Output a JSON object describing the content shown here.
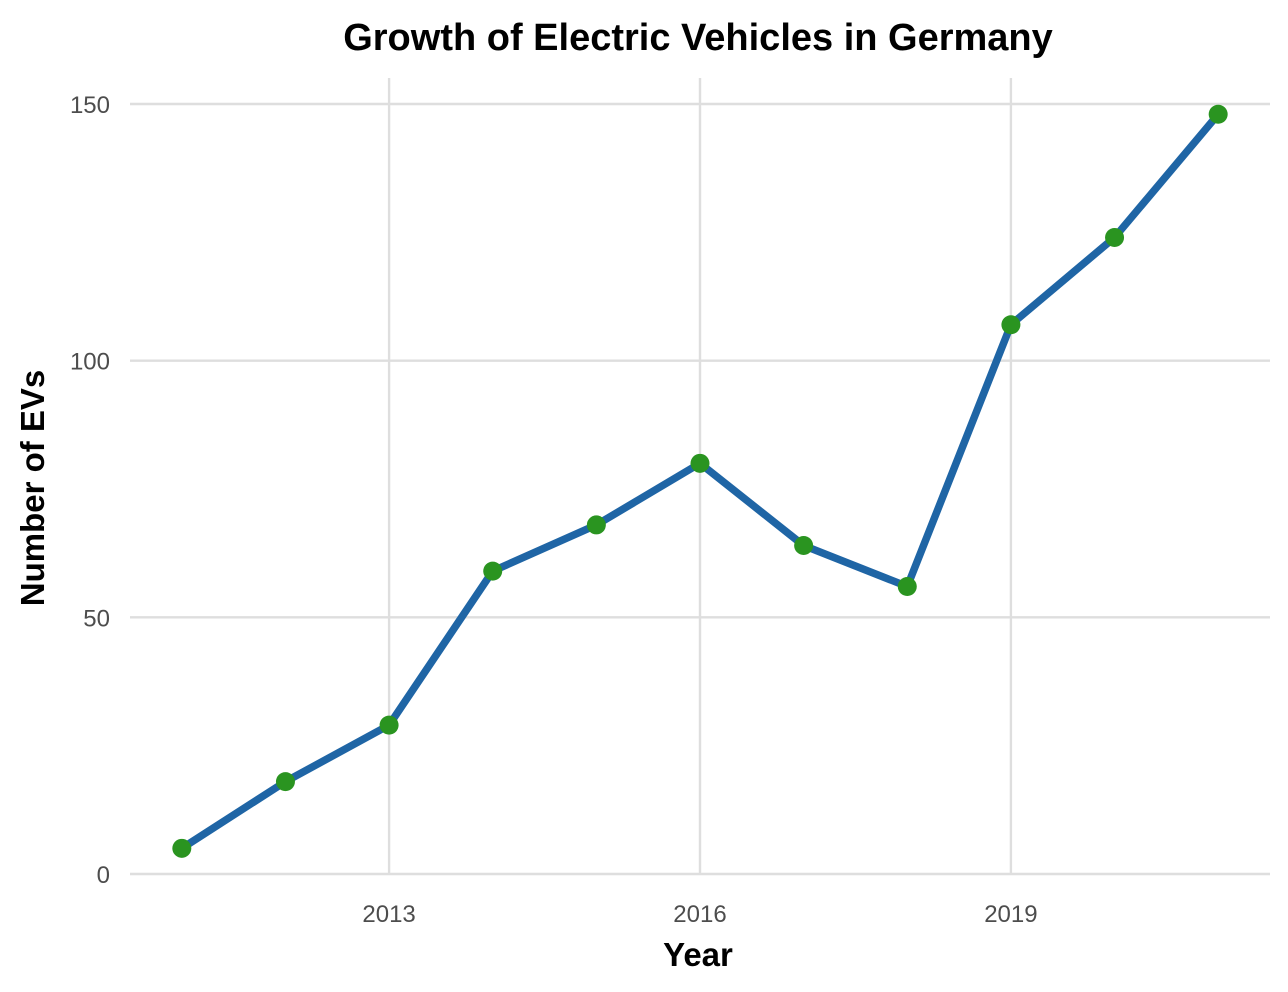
{
  "chart_data": {
    "type": "line",
    "title": "Growth of Electric Vehicles in Germany",
    "xlabel": "Year",
    "ylabel": "Number of EVs",
    "x": [
      2011,
      2012,
      2013,
      2014,
      2015,
      2016,
      2017,
      2018,
      2019,
      2020,
      2021
    ],
    "series": [
      {
        "values": [
          5,
          18,
          29,
          59,
          68,
          80,
          64,
          56,
          107,
          124,
          148
        ]
      }
    ],
    "xticks": [
      2013,
      2016,
      2019
    ],
    "xtick_labels": [
      "2013",
      "2016",
      "2019"
    ],
    "yticks": [
      0,
      50,
      100,
      150
    ],
    "ytick_labels": [
      "0",
      "50",
      "100",
      "150"
    ],
    "xlim": [
      2010.5,
      2021.5
    ],
    "ylim": [
      0,
      150
    ],
    "grid": true,
    "legend": "none",
    "colors": {
      "line": "#1f65a5",
      "marker": "#2a9420",
      "grid": "#dedede"
    }
  }
}
